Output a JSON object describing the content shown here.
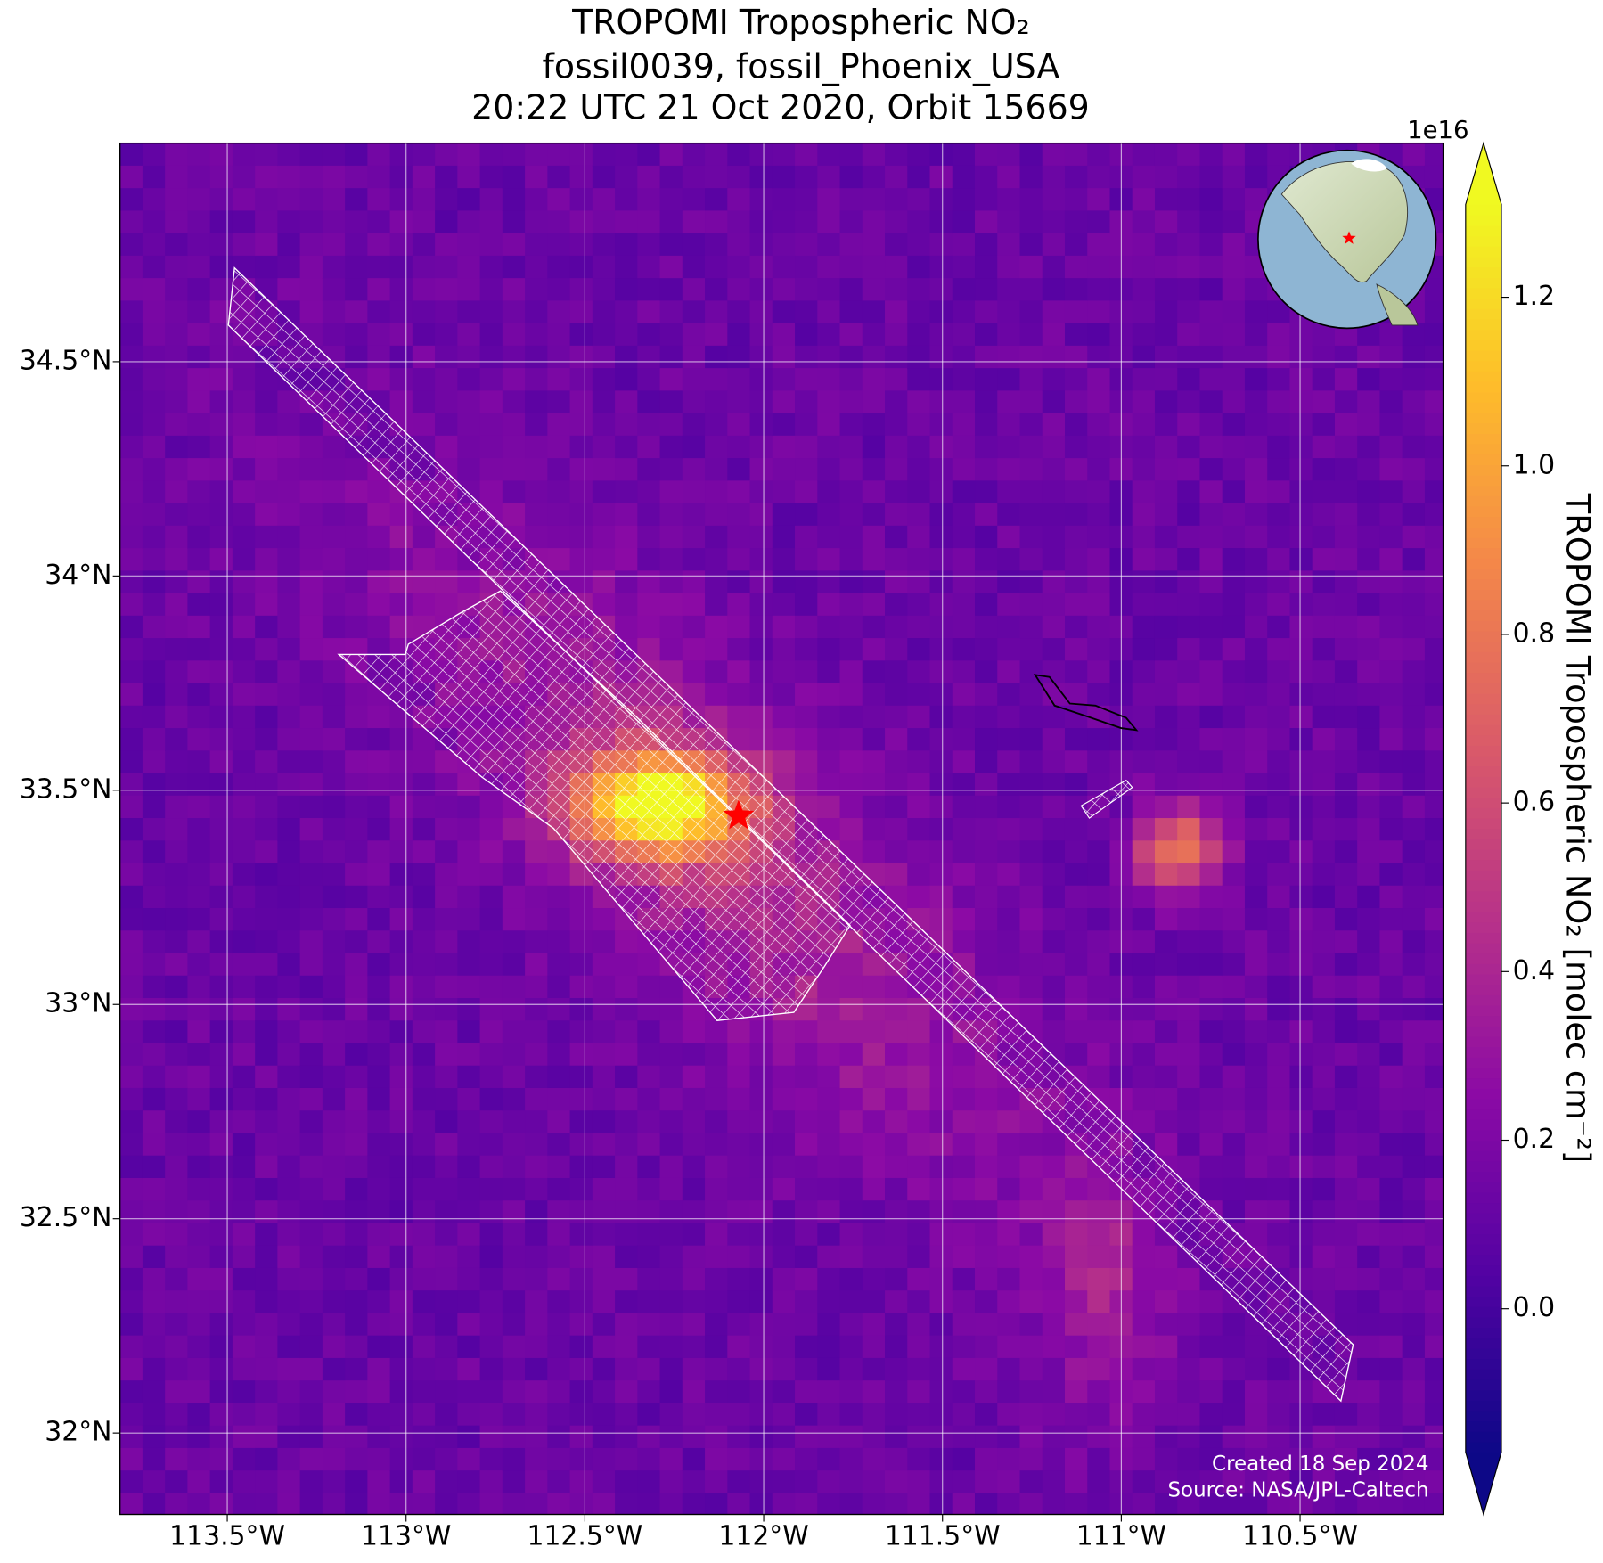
{
  "chart_data": {
    "type": "map",
    "title": [
      "TROPOMI Tropospheric NO₂",
      "fossil0039, fossil_Phoenix_USA",
      "20:22 UTC 21 Oct 2020, Orbit 15669"
    ],
    "xlim": [
      -113.8,
      -110.1
    ],
    "ylim": [
      31.81,
      35.01
    ],
    "xticks": [
      {
        "value": -113.5,
        "label": "113.5°W"
      },
      {
        "value": -113,
        "label": "113°W"
      },
      {
        "value": -112.5,
        "label": "112.5°W"
      },
      {
        "value": -112,
        "label": "112°W"
      },
      {
        "value": -111.5,
        "label": "111.5°W"
      },
      {
        "value": -111,
        "label": "111°W"
      },
      {
        "value": -110.5,
        "label": "110.5°W"
      }
    ],
    "yticks": [
      {
        "value": 32,
        "label": "32°N"
      },
      {
        "value": 32.5,
        "label": "32.5°N"
      },
      {
        "value": 33,
        "label": "33°N"
      },
      {
        "value": 33.5,
        "label": "33.5°N"
      },
      {
        "value": 34,
        "label": "34°N"
      },
      {
        "value": 34.5,
        "label": "34.5°N"
      }
    ],
    "grid": true,
    "site": {
      "lon": -112.07,
      "lat": 33.44,
      "color": "#ff0000"
    },
    "colorbar": {
      "label": "TROPOMI Tropospheric NO₂ [molec cm⁻²]",
      "offset": "1e16",
      "lim": [
        -0.17,
        1.31
      ],
      "ticks": [
        {
          "value": 0,
          "label": "0.0"
        },
        0.2,
        0.4,
        0.6,
        0.8,
        {
          "value": 1,
          "label": "1.0"
        },
        1.2
      ],
      "colormap": [
        "#0d0887",
        "#5302a3",
        "#8b0aa5",
        "#b83289",
        "#db5c68",
        "#f48849",
        "#febd2a",
        "#f0f921"
      ]
    },
    "footer": [
      "Created 18 Sep 2024",
      "Source: NASA/JPL-Caltech"
    ]
  }
}
